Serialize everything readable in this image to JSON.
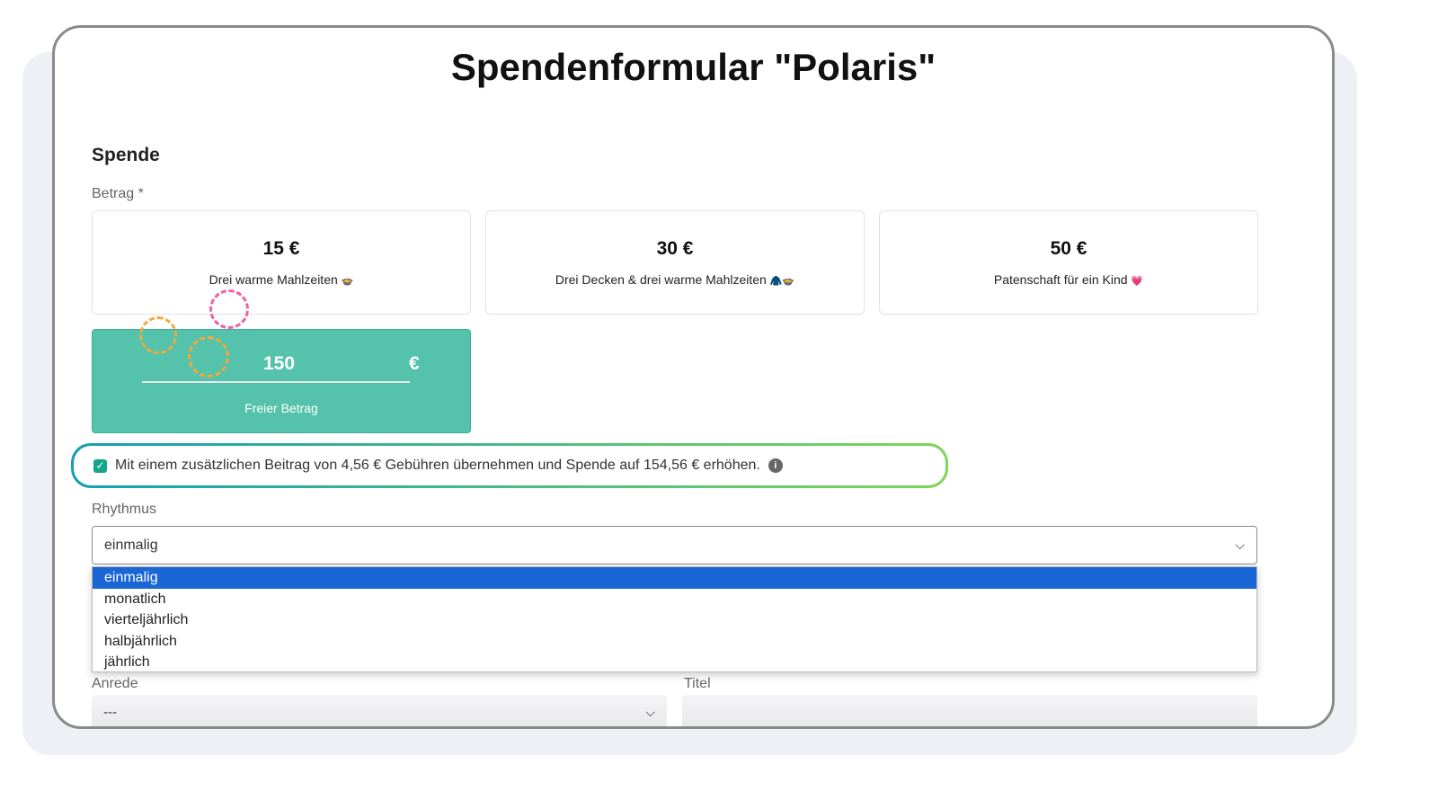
{
  "title": "Spendenformular \"Polaris\"",
  "section": "Spende",
  "amount_label": "Betrag *",
  "options": [
    {
      "amount": "15 €",
      "desc": "Drei warme Mahlzeiten",
      "emoji": "🍲"
    },
    {
      "amount": "30 €",
      "desc": "Drei Decken & drei warme Mahlzeiten",
      "emoji": "🧥🍲"
    },
    {
      "amount": "50 €",
      "desc": "Patenschaft für ein Kind",
      "emoji": "💗"
    }
  ],
  "free_amount": {
    "value": "150",
    "currency": "€",
    "label": "Freier Betrag"
  },
  "fee": {
    "checked": true,
    "text": "Mit einem zusätzlichen Beitrag von 4,56 € Gebühren übernehmen und Spende auf 154,56 € erhöhen.",
    "info": "i"
  },
  "rhythm": {
    "label": "Rhythmus",
    "value": "einmalig",
    "options": [
      "einmalig",
      "monatlich",
      "vierteljährlich",
      "halbjährlich",
      "jährlich"
    ]
  },
  "salutation": {
    "label": "Anrede",
    "value": "---"
  },
  "titel": {
    "label": "Titel",
    "value": ""
  },
  "colors": {
    "accent": "#55c2ac",
    "selected_option": "#1a66d4"
  }
}
